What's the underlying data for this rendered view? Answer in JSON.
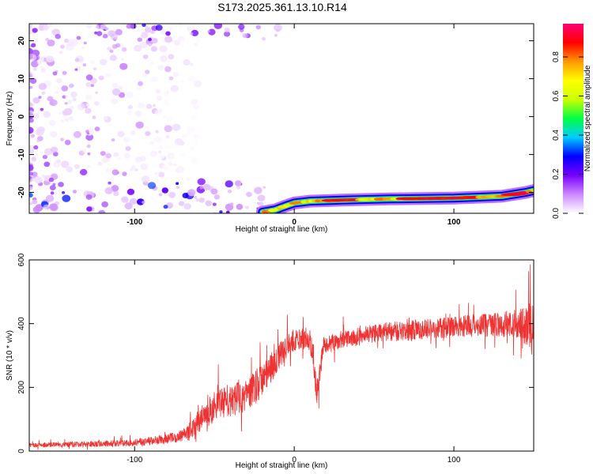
{
  "title": "S173.2025.361.13.10.R14",
  "chart_data": [
    {
      "type": "heatmap",
      "name": "spectrogram",
      "xlabel": "Height of straight line (km)",
      "ylabel": "Frequency (Hz)",
      "xlim": [
        -166,
        150
      ],
      "ylim": [
        -25.5,
        24.5
      ],
      "x_ticks": [
        -100,
        0,
        100
      ],
      "y_ticks": [
        -20,
        -10,
        0,
        10,
        20
      ],
      "colorbar": {
        "label": "Normalized spectral amplitude",
        "ticks": [
          0.0,
          0.2,
          0.4,
          0.6,
          0.8
        ],
        "range": [
          0.0,
          0.97
        ],
        "colors": [
          "#ffffff",
          "#cc88ff",
          "#7700ff",
          "#0000ff",
          "#00ccff",
          "#00ff44",
          "#ccff00",
          "#ffff00",
          "#ff9900",
          "#ff0000",
          "#ff0077"
        ]
      },
      "features": [
        {
          "kind": "noise-band",
          "x": [
            -166,
            -15
          ],
          "y": [
            -25.5,
            -17
          ],
          "amplitude": [
            0.05,
            0.4
          ],
          "description": "broadband low-frequency noise"
        },
        {
          "kind": "noise-band",
          "x": [
            -166,
            -60
          ],
          "y": [
            -17,
            24.5
          ],
          "amplitude": [
            0.02,
            0.2
          ],
          "description": "scattered noise, decreasing with height"
        },
        {
          "kind": "noise-band",
          "x": [
            -125,
            -5
          ],
          "y": [
            20,
            24.5
          ],
          "amplitude": [
            0.05,
            0.3
          ],
          "description": "top edge noise"
        },
        {
          "kind": "ridge",
          "points": [
            [
              -20,
              -25.2
            ],
            [
              -12,
              -24.6
            ],
            [
              -5,
              -23.5
            ],
            [
              0,
              -22.8
            ],
            [
              10,
              -22.3
            ],
            [
              30,
              -22.0
            ],
            [
              60,
              -21.7
            ],
            [
              100,
              -21.5
            ],
            [
              130,
              -21.0
            ],
            [
              145,
              -20.0
            ],
            [
              150,
              -19.5
            ]
          ],
          "amplitude": 0.85
        }
      ]
    },
    {
      "type": "line",
      "name": "snr",
      "xlabel": "Height of straight line (km)",
      "ylabel": "SNR (10 * v/v)",
      "xlim": [
        -166,
        150
      ],
      "ylim": [
        0,
        600
      ],
      "x_ticks": [
        -100,
        0,
        100
      ],
      "y_ticks": [
        0,
        200,
        400,
        600
      ],
      "color": "#ee3333",
      "series": [
        {
          "name": "SNR",
          "x": [
            -166,
            -150,
            -130,
            -110,
            -100,
            -90,
            -80,
            -70,
            -65,
            -60,
            -55,
            -50,
            -45,
            -40,
            -35,
            -30,
            -25,
            -20,
            -15,
            -10,
            -5,
            0,
            5,
            10,
            12,
            14,
            16,
            18,
            20,
            25,
            30,
            40,
            50,
            60,
            70,
            80,
            90,
            100,
            110,
            120,
            130,
            140,
            145,
            148,
            150
          ],
          "mean": [
            18,
            20,
            22,
            25,
            27,
            32,
            38,
            48,
            65,
            95,
            120,
            140,
            150,
            160,
            170,
            180,
            195,
            225,
            255,
            290,
            330,
            350,
            355,
            345,
            300,
            180,
            240,
            325,
            335,
            340,
            350,
            360,
            370,
            375,
            378,
            382,
            385,
            390,
            392,
            395,
            398,
            400,
            395,
            380,
            390
          ],
          "spread": [
            10,
            12,
            13,
            15,
            16,
            18,
            22,
            28,
            40,
            55,
            65,
            70,
            72,
            75,
            78,
            80,
            80,
            75,
            70,
            65,
            55,
            50,
            50,
            55,
            60,
            60,
            55,
            45,
            40,
            40,
            40,
            42,
            42,
            44,
            45,
            45,
            46,
            48,
            50,
            52,
            55,
            65,
            90,
            130,
            90
          ]
        }
      ]
    }
  ]
}
